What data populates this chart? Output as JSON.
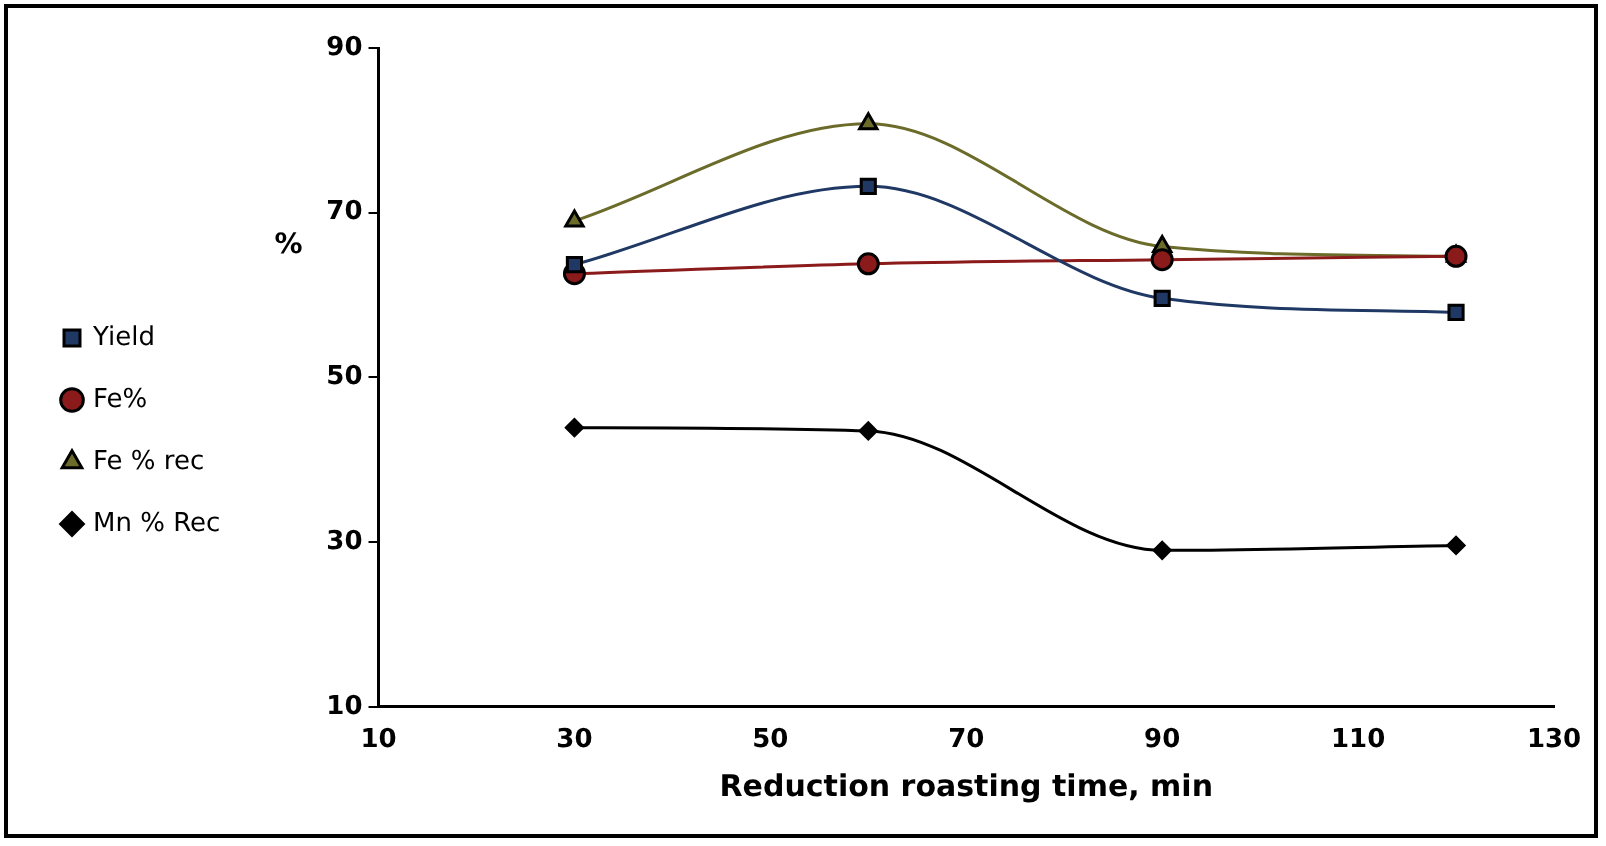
{
  "chart_data": {
    "type": "line",
    "xlabel": "Reduction roasting time, min",
    "ylabel": "%",
    "x": [
      30,
      60,
      90,
      120
    ],
    "series": [
      {
        "name": "Yield",
        "color": "#1f3864",
        "marker": "square",
        "values": [
          63.7,
          73.2,
          59.6,
          57.9
        ]
      },
      {
        "name": "Fe%",
        "color": "#8b1a1a",
        "marker": "circle",
        "values": [
          62.6,
          63.8,
          64.3,
          64.7
        ]
      },
      {
        "name": "Fe % rec",
        "color": "#6b6b2a",
        "marker": "triangle",
        "values": [
          69,
          80.8,
          65.9,
          64.7
        ]
      },
      {
        "name": "Mn % Rec",
        "color": "#000000",
        "marker": "diamond",
        "values": [
          43.9,
          43.5,
          29.0,
          29.6
        ]
      }
    ],
    "xlim": [
      10,
      130
    ],
    "xticks": [
      10,
      30,
      50,
      70,
      90,
      110,
      130
    ],
    "ylim": [
      10,
      90
    ],
    "yticks": [
      10,
      30,
      50,
      70,
      90
    ],
    "grid": false,
    "legend": "left",
    "line_style": "solid"
  }
}
